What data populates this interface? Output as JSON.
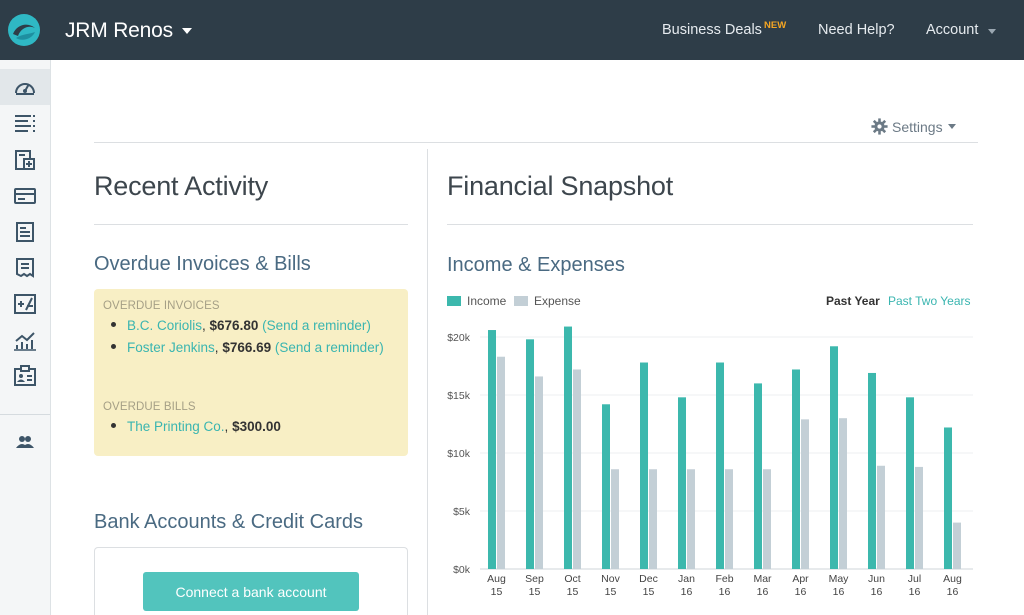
{
  "header": {
    "company": "JRM Renos",
    "nav_business_deals": "Business Deals",
    "nav_new_badge": "NEW",
    "nav_help": "Need Help?",
    "nav_account": "Account"
  },
  "sidebar": {
    "items": [
      {
        "icon": "dashboard-icon"
      },
      {
        "icon": "invoices-icon"
      },
      {
        "icon": "estimates-icon"
      },
      {
        "icon": "payments-icon"
      },
      {
        "icon": "expenses-icon"
      },
      {
        "icon": "bills-icon"
      },
      {
        "icon": "accounting-icon"
      },
      {
        "icon": "reports-icon"
      },
      {
        "icon": "contacts-icon"
      },
      {
        "icon": "team-icon"
      }
    ]
  },
  "settings_label": "Settings",
  "recent_activity": {
    "title": "Recent Activity",
    "overdue_title": "Overdue Invoices & Bills",
    "invoices_label": "OVERDUE INVOICES",
    "invoices": [
      {
        "name": "B.C. Coriolis",
        "amount": "$676.80",
        "action": "(Send a reminder)"
      },
      {
        "name": "Foster Jenkins",
        "amount": "$766.69",
        "action": "(Send a reminder)"
      }
    ],
    "bills_label": "OVERDUE BILLS",
    "bills": [
      {
        "name": "The Printing Co.",
        "amount": "$300.00"
      }
    ],
    "bank_title": "Bank Accounts & Credit Cards",
    "connect_button": "Connect a bank account"
  },
  "snapshot": {
    "title": "Financial Snapshot",
    "chart_title": "Income & Expenses",
    "range_active": "Past Year",
    "range_other": "Past Two Years"
  },
  "colors": {
    "income": "#3cb8ad",
    "expense": "#c3cfd6",
    "header_bg": "#2e3d48",
    "accent": "#3ab5b0"
  },
  "chart_data": {
    "type": "bar",
    "categories": [
      [
        "Aug",
        "15"
      ],
      [
        "Sep",
        "15"
      ],
      [
        "Oct",
        "15"
      ],
      [
        "Nov",
        "15"
      ],
      [
        "Dec",
        "15"
      ],
      [
        "Jan",
        "16"
      ],
      [
        "Feb",
        "16"
      ],
      [
        "Mar",
        "16"
      ],
      [
        "Apr",
        "16"
      ],
      [
        "May",
        "16"
      ],
      [
        "Jun",
        "16"
      ],
      [
        "Jul",
        "16"
      ],
      [
        "Aug",
        "16"
      ]
    ],
    "series": [
      {
        "name": "Income",
        "values": [
          20600,
          19800,
          20900,
          14200,
          17800,
          14800,
          17800,
          16000,
          17200,
          19200,
          16900,
          14800,
          12200
        ]
      },
      {
        "name": "Expense",
        "values": [
          18300,
          16600,
          17200,
          8600,
          8600,
          8600,
          8600,
          8600,
          12900,
          13000,
          8900,
          8800,
          4000
        ]
      }
    ],
    "ylim": [
      0,
      20000
    ],
    "yticks": [
      0,
      5000,
      10000,
      15000,
      20000
    ],
    "ytick_labels": [
      "$0k",
      "$5k",
      "$10k",
      "$15k",
      "$20k"
    ],
    "grid": true,
    "legend": "top-left"
  }
}
